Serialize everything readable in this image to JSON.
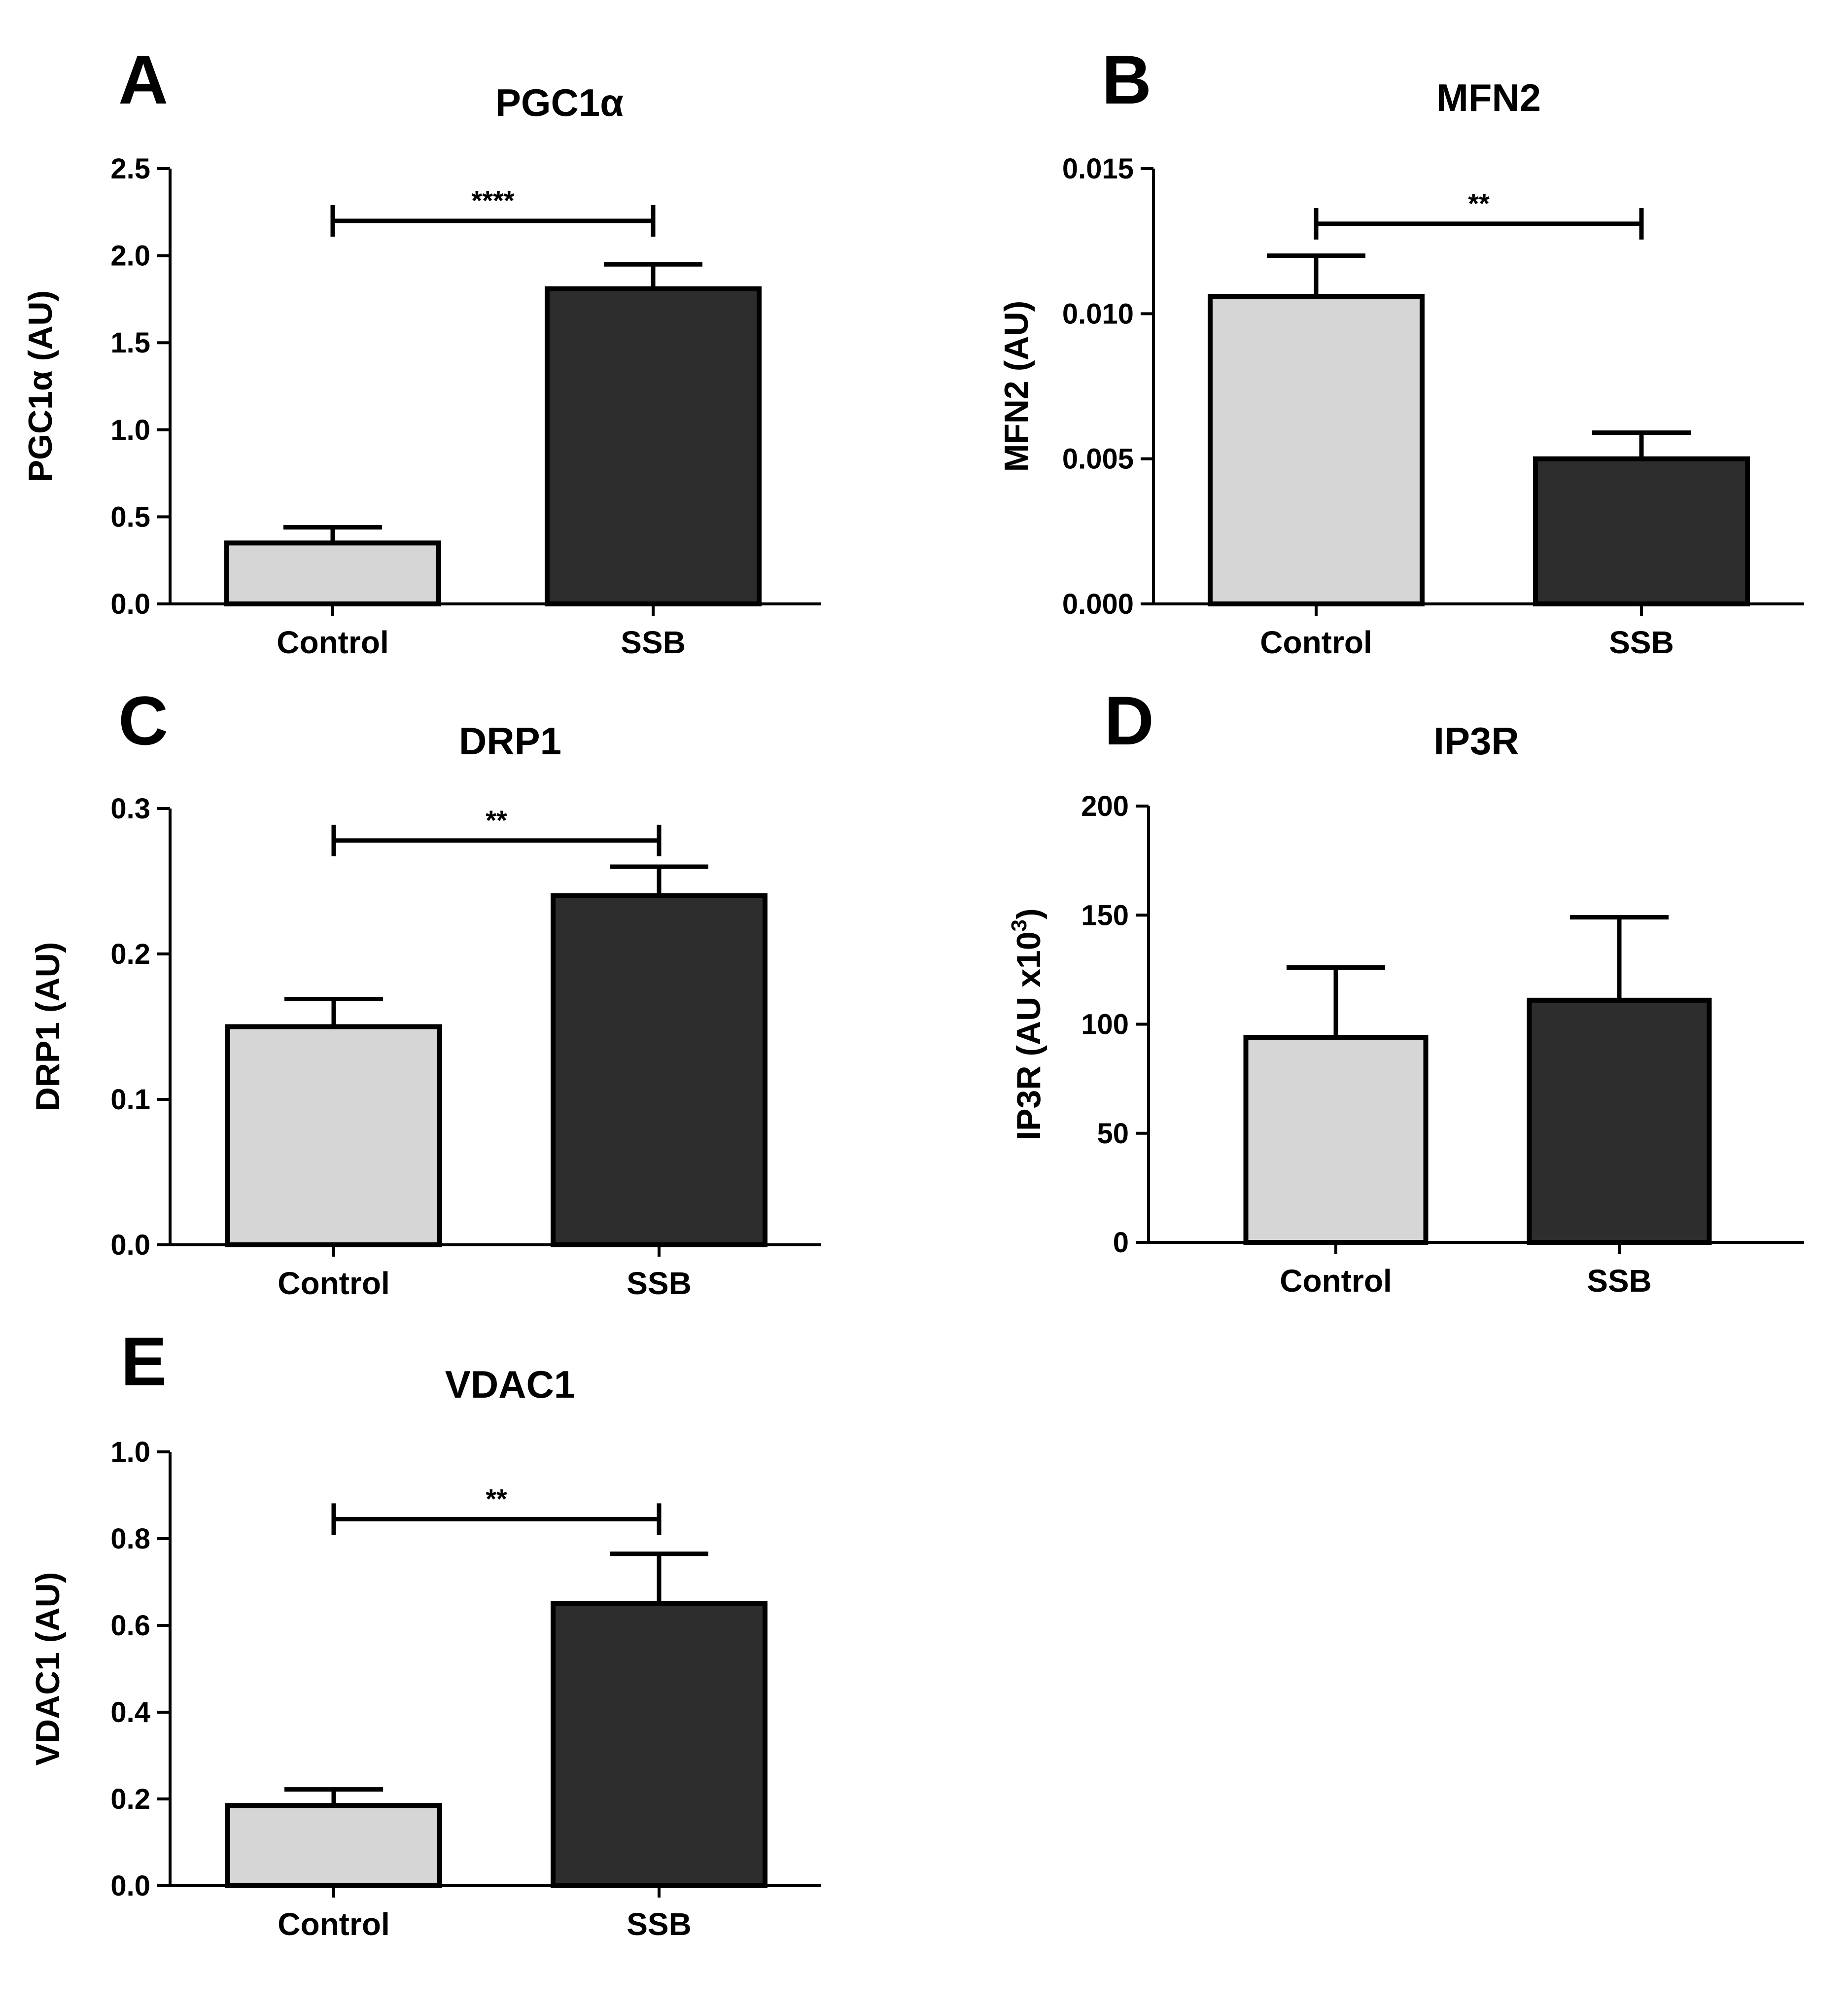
{
  "figure": {
    "colors": {
      "control_bar": "#d6d6d6",
      "ssb_bar": "#2d2d2d",
      "stroke": "#000000",
      "background": "#ffffff"
    }
  },
  "chart_data": [
    {
      "panel": "A",
      "type": "bar",
      "title": "PGC1α",
      "ylabel": "PGC1α (AU)",
      "ylabel_sup": "",
      "categories": [
        "Control",
        "SSB"
      ],
      "values": [
        0.35,
        1.81
      ],
      "errors": [
        0.09,
        0.14
      ],
      "ylim": [
        0,
        2.5
      ],
      "yticks": [
        "0.0",
        "0.5",
        "1.0",
        "1.5",
        "2.0",
        "2.5"
      ],
      "significance": {
        "label": "****",
        "y": 2.2
      }
    },
    {
      "panel": "B",
      "type": "bar",
      "title": "MFN2",
      "ylabel": "MFN2 (AU)",
      "ylabel_sup": "",
      "categories": [
        "Control",
        "SSB"
      ],
      "values": [
        0.0106,
        0.005
      ],
      "errors": [
        0.0014,
        0.0009
      ],
      "ylim": [
        0,
        0.015
      ],
      "yticks": [
        "0.000",
        "0.005",
        "0.010",
        "0.015"
      ],
      "significance": {
        "label": "**",
        "y": 0.0131
      }
    },
    {
      "panel": "C",
      "type": "bar",
      "title": "DRP1",
      "ylabel": "DRP1 (AU)",
      "ylabel_sup": "",
      "categories": [
        "Control",
        "SSB"
      ],
      "values": [
        0.15,
        0.24
      ],
      "errors": [
        0.019,
        0.02
      ],
      "ylim": [
        0,
        0.3
      ],
      "yticks": [
        "0.0",
        "0.1",
        "0.2",
        "0.3"
      ],
      "significance": {
        "label": "**",
        "y": 0.278
      }
    },
    {
      "panel": "D",
      "type": "bar",
      "title": "IP3R",
      "ylabel": "IP3R (AU x10",
      "ylabel_sup": "3",
      "ylabel_end": ")",
      "categories": [
        "Control",
        "SSB"
      ],
      "values": [
        94,
        111
      ],
      "errors": [
        32,
        38
      ],
      "ylim": [
        0,
        200
      ],
      "yticks": [
        "0",
        "50",
        "100",
        "150",
        "200"
      ],
      "significance": null
    },
    {
      "panel": "E",
      "type": "bar",
      "title": "VDAC1",
      "ylabel": "VDAC1 (AU)",
      "ylabel_sup": "",
      "categories": [
        "Control",
        "SSB"
      ],
      "values": [
        0.185,
        0.65
      ],
      "errors": [
        0.037,
        0.115
      ],
      "ylim": [
        0,
        1.0
      ],
      "yticks": [
        "0.0",
        "0.2",
        "0.4",
        "0.6",
        "0.8",
        "1.0"
      ],
      "significance": {
        "label": "**",
        "y": 0.845
      }
    }
  ]
}
